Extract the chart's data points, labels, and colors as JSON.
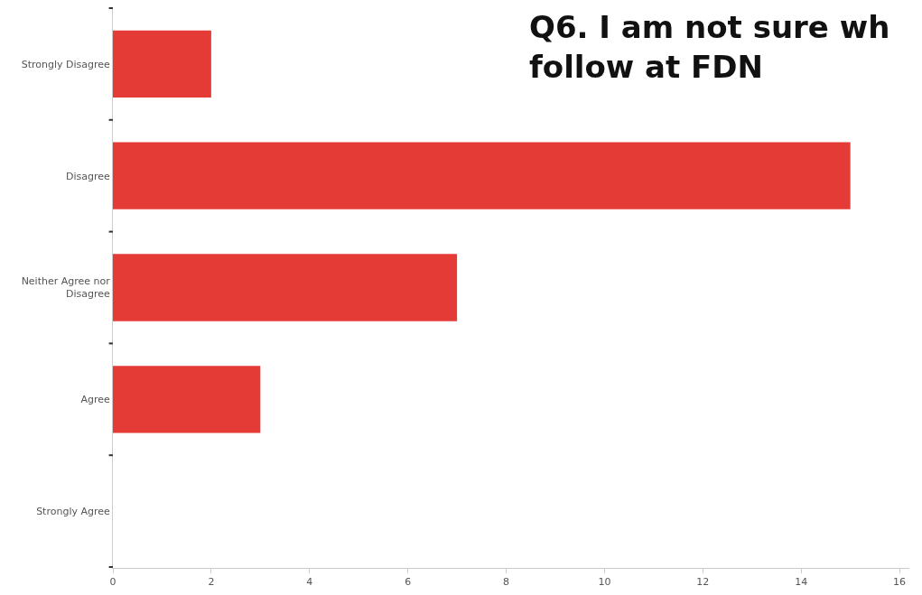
{
  "chart_data": {
    "type": "bar",
    "orientation": "horizontal",
    "title": "Q6. I am not sure wh\nfollow at FDN",
    "categories": [
      "Strongly Disagree",
      "Disagree",
      "Neither Agree nor\nDisagree",
      "Agree",
      "Strongly Agree"
    ],
    "values": [
      2,
      15,
      7,
      3,
      0
    ],
    "color": "#e53b37",
    "xlim": [
      0,
      16.2
    ],
    "xticks": [
      0,
      2,
      4,
      6,
      8,
      10,
      12,
      14,
      16
    ]
  }
}
